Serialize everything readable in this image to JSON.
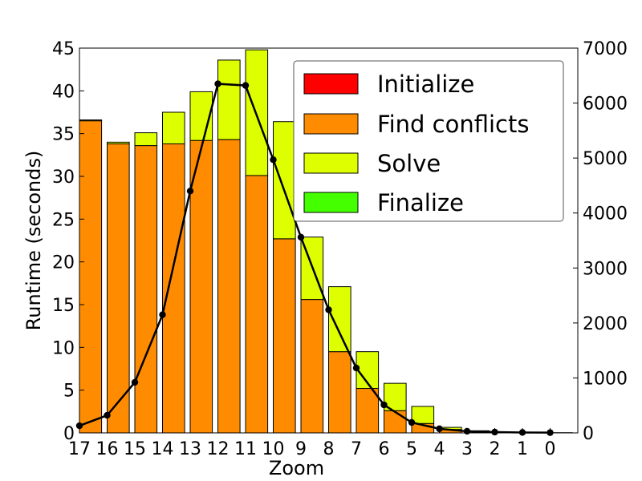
{
  "chart_data": {
    "type": "bar",
    "stacked": true,
    "categories": [
      "17",
      "16",
      "15",
      "14",
      "13",
      "12",
      "11",
      "10",
      "9",
      "8",
      "7",
      "6",
      "5",
      "4",
      "3",
      "2",
      "1",
      "0"
    ],
    "xlabel": "Zoom",
    "ylabel": "Runtime (seconds)",
    "ylim": [
      0,
      45
    ],
    "yticks": [
      0,
      5,
      10,
      15,
      20,
      25,
      30,
      35,
      40,
      45
    ],
    "y2lim": [
      0,
      7000
    ],
    "y2ticks": [
      0,
      1000,
      2000,
      3000,
      4000,
      5000,
      6000,
      7000
    ],
    "legend_position": "top-right",
    "series": [
      {
        "name": "Initialize",
        "color": "#ff0000",
        "values": [
          0,
          0,
          0,
          0,
          0,
          0,
          0,
          0,
          0,
          0,
          0,
          0,
          0,
          0,
          0,
          0,
          0,
          0
        ]
      },
      {
        "name": "Find conflicts",
        "color": "#ff8c00",
        "values": [
          36.5,
          33.8,
          33.6,
          33.8,
          34.2,
          34.3,
          30.1,
          22.7,
          15.6,
          9.5,
          5.2,
          2.6,
          1.1,
          0.4,
          0.15,
          0.05,
          0.02,
          0.01
        ]
      },
      {
        "name": "Solve",
        "color": "#ddff00",
        "values": [
          0.1,
          0.2,
          1.5,
          3.7,
          5.7,
          9.3,
          14.7,
          13.7,
          7.3,
          7.6,
          4.3,
          3.2,
          2.0,
          0.25,
          0.1,
          0.05,
          0.02,
          0.01
        ]
      },
      {
        "name": "Finalize",
        "color": "#44ff00",
        "values": [
          0,
          0,
          0,
          0,
          0,
          0,
          0,
          0,
          0,
          0,
          0,
          0,
          0,
          0,
          0,
          0,
          0,
          0
        ]
      }
    ],
    "line_series": {
      "axis": "right",
      "color": "#000000",
      "values": [
        130,
        320,
        920,
        2150,
        4400,
        6350,
        6320,
        4970,
        3560,
        2240,
        1180,
        510,
        190,
        75,
        30,
        15,
        8,
        5
      ]
    }
  }
}
